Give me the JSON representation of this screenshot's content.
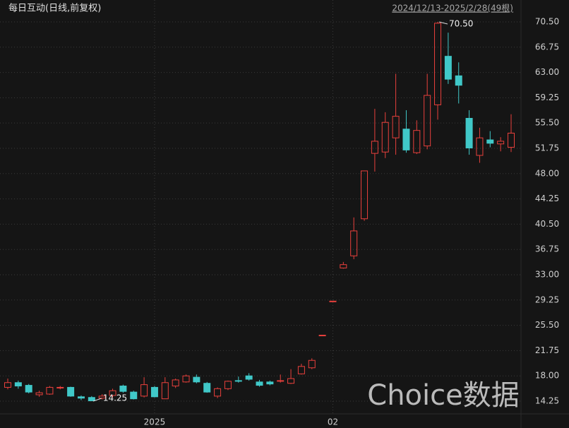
{
  "chart_data": {
    "type": "candlestick",
    "title": "每日互动(日线,前复权)",
    "subtitle": "2024/12/13-2025/2/28(49根)",
    "watermark": "Choice数据",
    "annotations": [
      {
        "text": "70.50",
        "index": 41
      },
      {
        "text": "14.25",
        "index": 8
      }
    ],
    "categories": [
      null,
      null,
      null,
      null,
      null,
      null,
      null,
      null,
      null,
      null,
      null,
      null,
      null,
      null,
      "2025",
      null,
      null,
      null,
      null,
      null,
      null,
      null,
      null,
      null,
      null,
      null,
      null,
      null,
      null,
      null,
      null,
      "02",
      null,
      null,
      null,
      null,
      null,
      null,
      null,
      null,
      null,
      null,
      null,
      null,
      null,
      null,
      null,
      null,
      null
    ],
    "up_color": "#e8403c",
    "down_color": "#40c8c8",
    "grid": true,
    "ylim": [
      12.47,
      71.44
    ],
    "yticks": [
      14.25,
      {
        "value": 18,
        "label": "18.00"
      },
      21.75,
      {
        "value": 25.5,
        "label": "25.50"
      },
      29.25,
      {
        "value": 33,
        "label": "33.00"
      },
      36.75,
      {
        "value": 40.5,
        "label": "40.50"
      },
      44.25,
      {
        "value": 48,
        "label": "48.00"
      },
      51.75,
      {
        "value": 55.5,
        "label": "55.50"
      },
      59.25,
      {
        "value": 63,
        "label": "63.00"
      },
      66.75,
      {
        "value": 70.5,
        "label": "70.50"
      }
    ],
    "series": [
      {
        "open": [
          16.3,
          17.0,
          16.6,
          15.2,
          15.3,
          16.2,
          16.3,
          14.9,
          14.8,
          14.7,
          15.1,
          16.5,
          15.6,
          15.0,
          16.3,
          14.6,
          16.5,
          17.1,
          17.8,
          16.9,
          15.0,
          16.1,
          17.3,
          18.0,
          17.1,
          17.1,
          17.2,
          16.9,
          18.3,
          19.2,
          24.04,
          29.09,
          34.0,
          35.8,
          41.3,
          51.0,
          51.2,
          53.3,
          54.6,
          51.1,
          52.1,
          58.2,
          65.4,
          62.5,
          56.2,
          50.7,
          53.0,
          52.4,
          51.9
        ],
        "high": [
          17.6,
          17.3,
          16.8,
          15.8,
          16.5,
          16.5,
          16.4,
          15.1,
          15.0,
          15.3,
          16.1,
          16.7,
          15.8,
          17.8,
          16.5,
          17.8,
          17.6,
          18.2,
          18.2,
          17.1,
          16.3,
          17.3,
          17.9,
          18.4,
          17.4,
          17.3,
          18.2,
          19.0,
          19.8,
          20.6,
          24.04,
          29.09,
          34.9,
          41.5,
          48.4,
          57.6,
          57.1,
          62.8,
          57.4,
          55.9,
          62.8,
          70.5,
          68.9,
          64.5,
          57.4,
          54.8,
          54.3,
          53.4,
          56.8
        ],
        "low": [
          16.0,
          16.1,
          15.4,
          14.9,
          15.2,
          16.0,
          14.9,
          14.4,
          14.25,
          14.5,
          14.8,
          15.5,
          14.5,
          14.8,
          14.8,
          14.6,
          16.2,
          17.0,
          16.9,
          15.5,
          14.7,
          15.9,
          17.0,
          17.3,
          16.4,
          16.6,
          17.0,
          16.8,
          18.2,
          19.0,
          24.04,
          29.09,
          33.9,
          35.3,
          41.0,
          48.3,
          50.3,
          50.8,
          51.1,
          50.9,
          51.6,
          56.0,
          61.3,
          58.4,
          50.8,
          49.6,
          51.9,
          51.3,
          51.2
        ],
        "close": [
          17.0,
          16.5,
          15.6,
          15.5,
          16.3,
          16.3,
          15.0,
          14.7,
          14.3,
          15.0,
          15.8,
          15.7,
          14.6,
          16.7,
          14.9,
          17.0,
          17.4,
          18.0,
          17.1,
          15.6,
          16.1,
          17.2,
          17.2,
          17.5,
          16.6,
          16.8,
          17.3,
          17.6,
          19.4,
          20.3,
          24.04,
          29.09,
          34.5,
          39.5,
          48.4,
          52.8,
          55.6,
          56.5,
          51.5,
          54.4,
          59.6,
          70.3,
          62.0,
          61.1,
          51.8,
          53.3,
          52.5,
          52.8,
          54.0
        ]
      }
    ]
  }
}
